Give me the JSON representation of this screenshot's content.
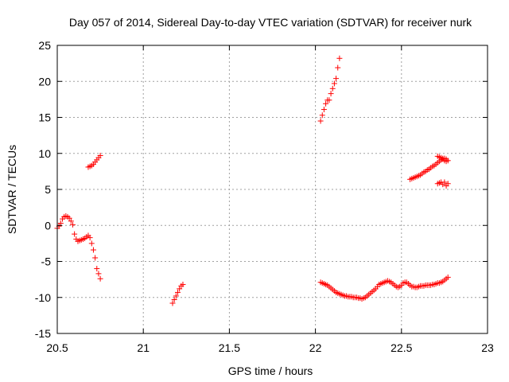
{
  "chart_data": {
    "type": "scatter",
    "title": "Day 057 of 2014, Sidereal Day-to-day VTEC variation (SDTVAR) for receiver nurk",
    "xlabel": "GPS time / hours",
    "ylabel": "SDTVAR / TECUs",
    "xlim": [
      20.5,
      23
    ],
    "ylim": [
      -15,
      25
    ],
    "xticks": [
      "20.5",
      "21",
      "21.5",
      "22",
      "22.5",
      "23"
    ],
    "yticks": [
      "-15",
      "-10",
      "-5",
      "0",
      "5",
      "10",
      "15",
      "20",
      "25"
    ],
    "xtick_values": [
      20.5,
      21,
      21.5,
      22,
      22.5,
      23
    ],
    "ytick_values": [
      -15,
      -10,
      -5,
      0,
      5,
      10,
      15,
      20,
      25
    ],
    "grid": true,
    "marker": "+",
    "color": "#ff0000",
    "series": [
      {
        "name": "SDTVAR",
        "points": [
          [
            20.5,
            -0.4
          ],
          [
            20.51,
            -0.1
          ],
          [
            20.52,
            0.3
          ],
          [
            20.53,
            0.9
          ],
          [
            20.54,
            1.2
          ],
          [
            20.55,
            1.3
          ],
          [
            20.56,
            1.2
          ],
          [
            20.57,
            1.0
          ],
          [
            20.58,
            0.6
          ],
          [
            20.59,
            0.1
          ],
          [
            20.6,
            -1.2
          ],
          [
            20.61,
            -1.9
          ],
          [
            20.62,
            -2.2
          ],
          [
            20.63,
            -2.1
          ],
          [
            20.64,
            -2.0
          ],
          [
            20.65,
            -1.9
          ],
          [
            20.66,
            -1.8
          ],
          [
            20.67,
            -1.6
          ],
          [
            20.68,
            -1.4
          ],
          [
            20.69,
            -1.7
          ],
          [
            20.7,
            -2.5
          ],
          [
            20.71,
            -3.4
          ],
          [
            20.72,
            -4.5
          ],
          [
            20.73,
            -6.0
          ],
          [
            20.74,
            -6.7
          ],
          [
            20.75,
            -7.4
          ],
          [
            20.68,
            8.1
          ],
          [
            20.69,
            8.2
          ],
          [
            20.7,
            8.3
          ],
          [
            20.71,
            8.5
          ],
          [
            20.72,
            8.8
          ],
          [
            20.73,
            9.1
          ],
          [
            20.74,
            9.4
          ],
          [
            20.75,
            9.7
          ],
          [
            21.17,
            -10.8
          ],
          [
            21.18,
            -10.3
          ],
          [
            21.19,
            -9.8
          ],
          [
            21.2,
            -9.3
          ],
          [
            21.21,
            -8.8
          ],
          [
            21.22,
            -8.4
          ],
          [
            21.23,
            -8.2
          ],
          [
            22.03,
            14.5
          ],
          [
            22.04,
            15.3
          ],
          [
            22.05,
            16.1
          ],
          [
            22.06,
            16.9
          ],
          [
            22.07,
            17.4
          ],
          [
            22.08,
            17.4
          ],
          [
            22.09,
            18.3
          ],
          [
            22.1,
            19.0
          ],
          [
            22.11,
            19.7
          ],
          [
            22.12,
            20.4
          ],
          [
            22.13,
            21.9
          ],
          [
            22.14,
            23.2
          ],
          [
            22.03,
            -7.9
          ],
          [
            22.04,
            -8.0
          ],
          [
            22.05,
            -8.1
          ],
          [
            22.06,
            -8.2
          ],
          [
            22.07,
            -8.3
          ],
          [
            22.08,
            -8.5
          ],
          [
            22.09,
            -8.7
          ],
          [
            22.1,
            -8.9
          ],
          [
            22.11,
            -9.1
          ],
          [
            22.12,
            -9.3
          ],
          [
            22.13,
            -9.4
          ],
          [
            22.14,
            -9.5
          ],
          [
            22.15,
            -9.6
          ],
          [
            22.16,
            -9.7
          ],
          [
            22.17,
            -9.8
          ],
          [
            22.18,
            -9.8
          ],
          [
            22.19,
            -9.9
          ],
          [
            22.2,
            -9.9
          ],
          [
            22.21,
            -9.9
          ],
          [
            22.22,
            -10.0
          ],
          [
            22.23,
            -10.0
          ],
          [
            22.24,
            -10.0
          ],
          [
            22.25,
            -10.1
          ],
          [
            22.26,
            -10.1
          ],
          [
            22.27,
            -10.2
          ],
          [
            22.28,
            -10.1
          ],
          [
            22.29,
            -10.0
          ],
          [
            22.3,
            -9.8
          ],
          [
            22.31,
            -9.6
          ],
          [
            22.32,
            -9.4
          ],
          [
            22.33,
            -9.2
          ],
          [
            22.34,
            -9.0
          ],
          [
            22.35,
            -8.8
          ],
          [
            22.36,
            -8.5
          ],
          [
            22.37,
            -8.2
          ],
          [
            22.38,
            -8.1
          ],
          [
            22.39,
            -8.0
          ],
          [
            22.4,
            -7.9
          ],
          [
            22.41,
            -7.8
          ],
          [
            22.42,
            -7.7
          ],
          [
            22.43,
            -7.8
          ],
          [
            22.44,
            -7.9
          ],
          [
            22.45,
            -8.1
          ],
          [
            22.46,
            -8.3
          ],
          [
            22.47,
            -8.5
          ],
          [
            22.48,
            -8.6
          ],
          [
            22.49,
            -8.5
          ],
          [
            22.5,
            -8.3
          ],
          [
            22.51,
            -8.0
          ],
          [
            22.52,
            -7.9
          ],
          [
            22.53,
            -7.9
          ],
          [
            22.54,
            -8.1
          ],
          [
            22.55,
            -8.3
          ],
          [
            22.56,
            -8.5
          ],
          [
            22.57,
            -8.5
          ],
          [
            22.58,
            -8.6
          ],
          [
            22.59,
            -8.6
          ],
          [
            22.6,
            -8.5
          ],
          [
            22.61,
            -8.4
          ],
          [
            22.62,
            -8.4
          ],
          [
            22.63,
            -8.4
          ],
          [
            22.64,
            -8.3
          ],
          [
            22.65,
            -8.3
          ],
          [
            22.66,
            -8.3
          ],
          [
            22.67,
            -8.3
          ],
          [
            22.68,
            -8.2
          ],
          [
            22.69,
            -8.2
          ],
          [
            22.7,
            -8.1
          ],
          [
            22.71,
            -8.0
          ],
          [
            22.72,
            -8.0
          ],
          [
            22.73,
            -7.9
          ],
          [
            22.74,
            -7.8
          ],
          [
            22.75,
            -7.6
          ],
          [
            22.76,
            -7.4
          ],
          [
            22.77,
            -7.2
          ],
          [
            22.55,
            6.4
          ],
          [
            22.56,
            6.5
          ],
          [
            22.57,
            6.6
          ],
          [
            22.58,
            6.7
          ],
          [
            22.59,
            6.8
          ],
          [
            22.6,
            6.9
          ],
          [
            22.61,
            7.0
          ],
          [
            22.62,
            7.2
          ],
          [
            22.63,
            7.4
          ],
          [
            22.64,
            7.5
          ],
          [
            22.65,
            7.7
          ],
          [
            22.66,
            7.8
          ],
          [
            22.67,
            8.0
          ],
          [
            22.68,
            8.2
          ],
          [
            22.69,
            8.3
          ],
          [
            22.7,
            8.5
          ],
          [
            22.71,
            8.7
          ],
          [
            22.72,
            8.9
          ],
          [
            22.73,
            9.1
          ],
          [
            22.74,
            9.3
          ],
          [
            22.75,
            9.3
          ],
          [
            22.76,
            9.2
          ],
          [
            22.77,
            9.0
          ],
          [
            22.71,
            9.6
          ],
          [
            22.72,
            9.5
          ],
          [
            22.73,
            9.4
          ],
          [
            22.74,
            9.2
          ],
          [
            22.75,
            9.0
          ],
          [
            22.76,
            8.9
          ],
          [
            22.71,
            5.8
          ],
          [
            22.72,
            5.9
          ],
          [
            22.73,
            6.0
          ],
          [
            22.74,
            5.7
          ],
          [
            22.75,
            6.0
          ],
          [
            22.76,
            5.5
          ],
          [
            22.77,
            5.8
          ]
        ]
      }
    ]
  }
}
